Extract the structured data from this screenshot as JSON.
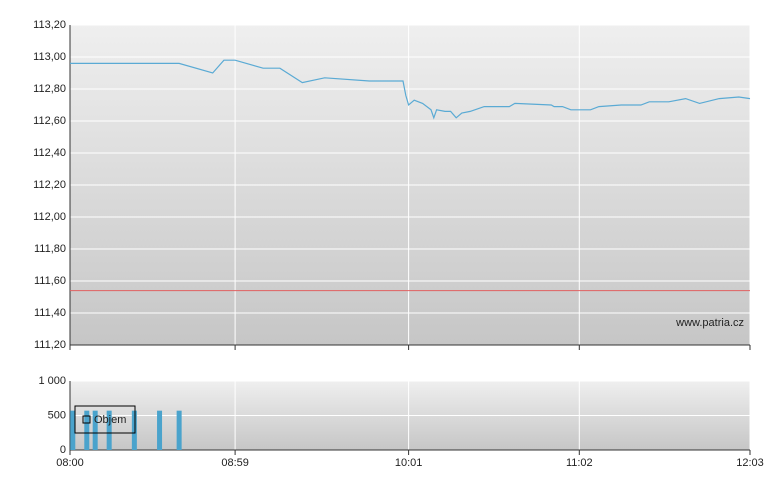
{
  "chart_data": [
    {
      "type": "line",
      "x": [
        0,
        39,
        51,
        55,
        59,
        69,
        75,
        83,
        91,
        107,
        119,
        120,
        121,
        123,
        126,
        129,
        130,
        131,
        134,
        136,
        138,
        140,
        143,
        148,
        157,
        159,
        172,
        173,
        176,
        179,
        186,
        189,
        197,
        204,
        207,
        214,
        220,
        225,
        232,
        239,
        243
      ],
      "values": [
        112.96,
        112.96,
        112.9,
        112.98,
        112.98,
        112.93,
        112.93,
        112.84,
        112.87,
        112.85,
        112.85,
        112.76,
        112.7,
        112.73,
        112.71,
        112.67,
        112.62,
        112.67,
        112.66,
        112.66,
        112.62,
        112.65,
        112.66,
        112.69,
        112.69,
        112.71,
        112.7,
        112.69,
        112.69,
        112.67,
        112.67,
        112.69,
        112.7,
        112.7,
        112.72,
        112.72,
        112.74,
        112.71,
        112.74,
        112.75,
        112.74
      ],
      "color": "#5aaad4",
      "reference_line": 111.54,
      "reference_color": "#e06060",
      "watermark": "www.patria.cz",
      "xlim": [
        0,
        243
      ],
      "xticks": [
        {
          "value": 0,
          "label": "08:00"
        },
        {
          "value": 59,
          "label": "08:59"
        },
        {
          "value": 121,
          "label": "10:01"
        },
        {
          "value": 182,
          "label": "11:02"
        },
        {
          "value": 243,
          "label": "12:03"
        }
      ],
      "ylim": [
        111.2,
        113.2
      ],
      "yticks": [
        {
          "value": 111.2,
          "label": "111,20"
        },
        {
          "value": 111.4,
          "label": "111,40"
        },
        {
          "value": 111.6,
          "label": "111,60"
        },
        {
          "value": 111.8,
          "label": "111,80"
        },
        {
          "value": 112.0,
          "label": "112,00"
        },
        {
          "value": 112.2,
          "label": "112,20"
        },
        {
          "value": 112.4,
          "label": "112,40"
        },
        {
          "value": 112.6,
          "label": "112,60"
        },
        {
          "value": 112.8,
          "label": "112,80"
        },
        {
          "value": 113.0,
          "label": "113,00"
        },
        {
          "value": 113.2,
          "label": "113,20"
        }
      ],
      "grid": true
    },
    {
      "type": "bar",
      "x": [
        1,
        6,
        9,
        14,
        23,
        32,
        39
      ],
      "series": [
        {
          "name": "Objem",
          "color": "#4aa3cc",
          "values": [
            570,
            570,
            570,
            570,
            570,
            570,
            570
          ]
        }
      ],
      "legend": "top-left",
      "xlim": [
        0,
        243
      ],
      "xticks": [
        {
          "value": 0,
          "label": "08:00"
        },
        {
          "value": 59,
          "label": "08:59"
        },
        {
          "value": 121,
          "label": "10:01"
        },
        {
          "value": 182,
          "label": "11:02"
        },
        {
          "value": 243,
          "label": "12:03"
        }
      ],
      "ylim": [
        0,
        1000
      ],
      "yticks": [
        0,
        500,
        {
          "value": 1000,
          "label": "1 000"
        }
      ],
      "grid": true
    }
  ]
}
